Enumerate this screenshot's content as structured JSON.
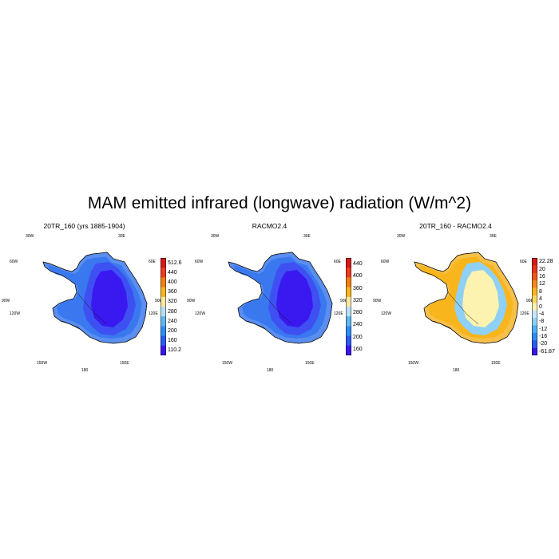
{
  "title": "MAM emitted infrared (longwave) radiation (W/m^2)",
  "lon_labels": {
    "w30": "30W",
    "e30": "30E",
    "w60": "60W",
    "e60": "60E",
    "w90": "90W",
    "e90": "90E",
    "w120": "120W",
    "e120": "120E",
    "w150": "150W",
    "e150": "150E",
    "s180": "180"
  },
  "panels": [
    {
      "title": "20TR_160 (yrs 1885-1904)",
      "colorbar": {
        "labels": [
          "512.6",
          "440",
          "400",
          "360",
          "320",
          "280",
          "240",
          "200",
          "160",
          "110.2"
        ],
        "colors": [
          "#d7191c",
          "#f03b20",
          "#f47f12",
          "#f9b51c",
          "#fde7a0",
          "#b8e0f4",
          "#5fb7ee",
          "#2f8ef3",
          "#2a5cf2",
          "#3a16f0"
        ]
      },
      "map_colors": {
        "coast": "#5a8ef0",
        "ring": "#3a78f0",
        "inner": "#3f50f2",
        "core": "#3a18f0"
      }
    },
    {
      "title": "RACMO2.4",
      "colorbar": {
        "labels": [
          "440",
          "400",
          "360",
          "320",
          "280",
          "240",
          "200",
          "160"
        ],
        "colors": [
          "#d7191c",
          "#f03b20",
          "#f47f12",
          "#f9b51c",
          "#fde7a0",
          "#b8e0f4",
          "#5fb7ee",
          "#2f8ef3",
          "#2a5cf2",
          "#3a16f0"
        ]
      },
      "map_colors": {
        "coast": "#5a8ef0",
        "ring": "#3a78f0",
        "inner": "#3f50f2",
        "core": "#3a18f0"
      }
    },
    {
      "title": "20TR_160 - RACMO2.4",
      "colorbar": {
        "labels": [
          "22.28",
          "20",
          "16",
          "12",
          "8",
          "4",
          "0",
          "-4",
          "-8",
          "-12",
          "-16",
          "-20",
          "-61.87"
        ],
        "colors": [
          "#d7191c",
          "#e9341a",
          "#f0581a",
          "#f5891b",
          "#f9b51c",
          "#fbd860",
          "#fdf3b0",
          "#c5e7f7",
          "#8fd0f6",
          "#4fb0f4",
          "#2f8ef3",
          "#2a5cf2",
          "#3a16f0"
        ]
      },
      "map_colors": {
        "coast": "#f6c04a",
        "ring": "#f9b51c",
        "inner": "#8fd0f6",
        "core": "#fdf3b0"
      }
    }
  ]
}
